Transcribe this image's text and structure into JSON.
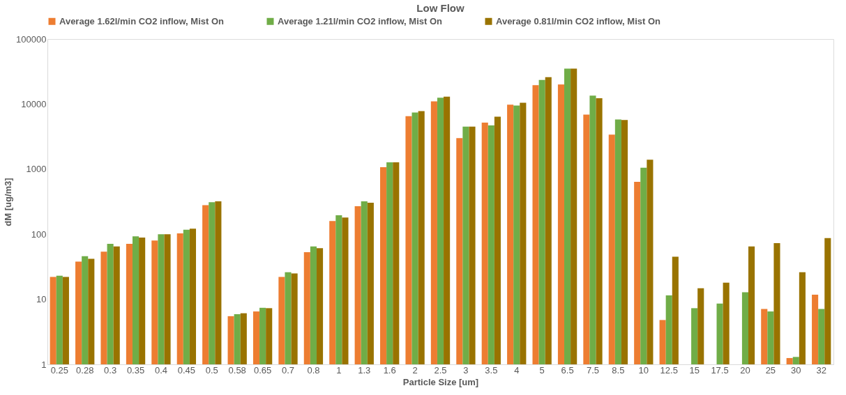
{
  "chart_data": {
    "type": "bar",
    "title": "Low Flow",
    "xlabel": "Particle Size [um]",
    "ylabel": "dM [ug/m3]",
    "categories": [
      "0.25",
      "0.28",
      "0.3",
      "0.35",
      "0.4",
      "0.45",
      "0.5",
      "0.58",
      "0.65",
      "0.7",
      "0.8",
      "1",
      "1.3",
      "1.6",
      "2",
      "2.5",
      "3",
      "3.5",
      "4",
      "5",
      "6.5",
      "7.5",
      "8.5",
      "10",
      "12.5",
      "15",
      "17.5",
      "20",
      "25",
      "30",
      "32"
    ],
    "series": [
      {
        "name": "Average 1.62l/min CO2 inflow, Mist On",
        "color": "#ed7d31",
        "values": [
          22,
          38,
          54,
          71,
          80,
          103,
          280,
          5.5,
          6.5,
          22,
          53,
          160,
          270,
          1070,
          6500,
          11000,
          3000,
          5200,
          9800,
          19500,
          20000,
          6900,
          3400,
          640,
          4.8,
          null,
          null,
          null,
          7.1,
          1.25,
          11.8
        ]
      },
      {
        "name": "Average 1.21l/min CO2 inflow, Mist On",
        "color": "#70ad47",
        "values": [
          23,
          46,
          71,
          93,
          100,
          117,
          310,
          5.9,
          7.4,
          26,
          65,
          195,
          320,
          1270,
          7400,
          12500,
          4500,
          4700,
          9500,
          23500,
          35000,
          13500,
          5800,
          1050,
          11.5,
          7.3,
          8.6,
          12.8,
          6.5,
          1.3,
          7.1
        ]
      },
      {
        "name": "Average 0.81l/min CO2 inflow, Mist On",
        "color": "#997300",
        "values": [
          22,
          42,
          65,
          89,
          100,
          122,
          320,
          6.1,
          7.3,
          25,
          61,
          180,
          305,
          1270,
          7800,
          13000,
          4500,
          6400,
          10500,
          26000,
          35000,
          12300,
          5700,
          1400,
          45,
          14.8,
          18,
          65,
          73,
          26,
          87
        ]
      }
    ],
    "log": true,
    "ylim": [
      1,
      100000
    ],
    "yticks": [
      1,
      10,
      100,
      1000,
      10000,
      100000
    ],
    "grid": false,
    "legend": "top"
  }
}
